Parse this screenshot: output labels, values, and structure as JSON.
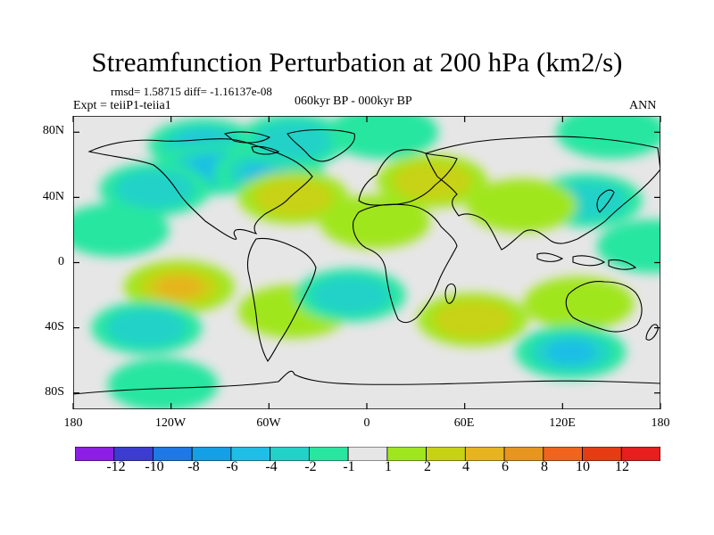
{
  "title": "Streamfunction Perturbation at 200 hPa (km2/s)",
  "stats": "rmsd= 1.58715 diff= -1.16137e-08",
  "expt": "Expt = teiiP1-teiia1",
  "period": "060kyr BP - 000kyr BP",
  "season": "ANN",
  "y_ticks": [
    "80N",
    "40N",
    "0",
    "40S",
    "80S"
  ],
  "x_ticks": [
    "180",
    "120W",
    "60W",
    "0",
    "60E",
    "120E",
    "180"
  ],
  "colorbar": {
    "labels": [
      "-12",
      "-10",
      "-8",
      "-6",
      "-4",
      "-2",
      "-1",
      "1",
      "2",
      "4",
      "6",
      "8",
      "10",
      "12"
    ],
    "colors": [
      "#8c1ee6",
      "#3c3cd2",
      "#1e78e6",
      "#14a0e6",
      "#1ebee6",
      "#22d2c8",
      "#28e6a0",
      "#e6e6e6",
      "#a0e61e",
      "#c8d214",
      "#e6b41e",
      "#e6961e",
      "#f0641e",
      "#e63c14",
      "#e61e1e"
    ]
  },
  "map_background": "#e6e6e6",
  "anomalies": [
    {
      "lon": -100,
      "lat": 72,
      "sign": "neg",
      "level": 4
    },
    {
      "lon": -95,
      "lat": 58,
      "sign": "neg",
      "level": 3
    },
    {
      "lon": -60,
      "lat": 55,
      "sign": "neg",
      "level": 3
    },
    {
      "lon": -130,
      "lat": 45,
      "sign": "neg",
      "level": 2
    },
    {
      "lon": -155,
      "lat": 20,
      "sign": "neg",
      "level": 1
    },
    {
      "lon": -45,
      "lat": 75,
      "sign": "neg",
      "level": 2
    },
    {
      "lon": 10,
      "lat": 80,
      "sign": "neg",
      "level": 1
    },
    {
      "lon": 150,
      "lat": 80,
      "sign": "neg",
      "level": 1
    },
    {
      "lon": 135,
      "lat": 38,
      "sign": "neg",
      "level": 2
    },
    {
      "lon": 175,
      "lat": 10,
      "sign": "neg",
      "level": 1
    },
    {
      "lon": -45,
      "lat": 40,
      "sign": "pos",
      "level": 2
    },
    {
      "lon": 40,
      "lat": 50,
      "sign": "pos",
      "level": 2
    },
    {
      "lon": 5,
      "lat": 25,
      "sign": "pos",
      "level": 1
    },
    {
      "lon": 95,
      "lat": 35,
      "sign": "pos",
      "level": 1
    },
    {
      "lon": -115,
      "lat": -15,
      "sign": "pos",
      "level": 3
    },
    {
      "lon": -45,
      "lat": -30,
      "sign": "pos",
      "level": 1
    },
    {
      "lon": 65,
      "lat": -35,
      "sign": "pos",
      "level": 2
    },
    {
      "lon": 130,
      "lat": -25,
      "sign": "pos",
      "level": 1
    },
    {
      "lon": -135,
      "lat": -40,
      "sign": "neg",
      "level": 2
    },
    {
      "lon": -10,
      "lat": -20,
      "sign": "neg",
      "level": 2
    },
    {
      "lon": 125,
      "lat": -55,
      "sign": "neg",
      "level": 3
    },
    {
      "lon": -125,
      "lat": -75,
      "sign": "neg",
      "level": 1
    }
  ]
}
